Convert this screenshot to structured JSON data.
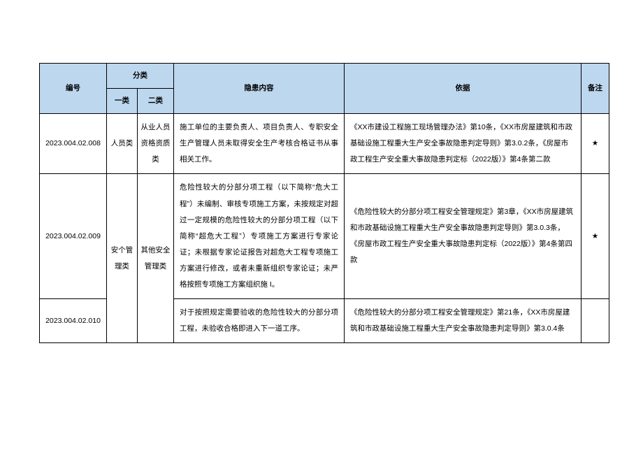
{
  "header": {
    "id": "编号",
    "category": "分类",
    "cat1": "一类",
    "cat2": "二类",
    "content": "隐患内容",
    "basis": "依据",
    "remark": "备注"
  },
  "rows": [
    {
      "id": "2023.004.02.008",
      "cat1": "人员类",
      "cat2": "从业人员资格资质类",
      "content": "施工单位的主要负责人、项目负责人、专职安全生产管理人员未取得安全生产考核合格证书从事相关工作。",
      "basis": "《XX市建设工程施工现场管理办法》第10条，《XX市房屋建筑和市政基础设施工程重大生产安全事故隐患判定导则》第3.0.2条，《房屋市政工程生产安全重大事故隐患判定标（2022版）》第4条第二款",
      "remark": "★",
      "cat1_rowspan": 1
    },
    {
      "id": "2023.004.02.009",
      "cat1": "安个管理类",
      "cat2": "其他安全管理类",
      "content": "危险性较大的分部分项工程（以下简称“危大工程”）未编制、审核专项施工方案，未按规定对超过一定规模的危险性较大的分部分项工程（以下简称“超危大工程”）专项施工方案进行专家论证；未根据专家论证报告对超危大工程专项施工方案进行修改，或者未重新组织专家论证；未严格按照专项施工方案组织施\nI。",
      "basis": "《危险性较大的分部分项工程安全管理规定》第3章，《XX市房屋建筑和市政基础设施工程重大生产安全事故隐患判定导则》第3.0.3条，《房屋市政工程生产安全重大事故隐患判定标（2022版）》第4条第四款",
      "remark": "★",
      "cat1_rowspan": 2,
      "cat2_rowspan": 2
    },
    {
      "id": "2023.004.02.010",
      "content": "对于按照规定需要验收的危险性较大的分部分项工程，未验收合格即进入下一道工序。",
      "basis": "《危险性较大的分部分项工程安全管理规定》第21条，《XX市房屋建筑和市政基础设施工程重大生产安全事故隐患判定导则》第3.0.4条",
      "remark": ""
    }
  ],
  "style": {
    "header_bg": "#bdd7ee",
    "border_color": "#000000",
    "font_size_pt": 10.5,
    "line_height": 2.2
  }
}
